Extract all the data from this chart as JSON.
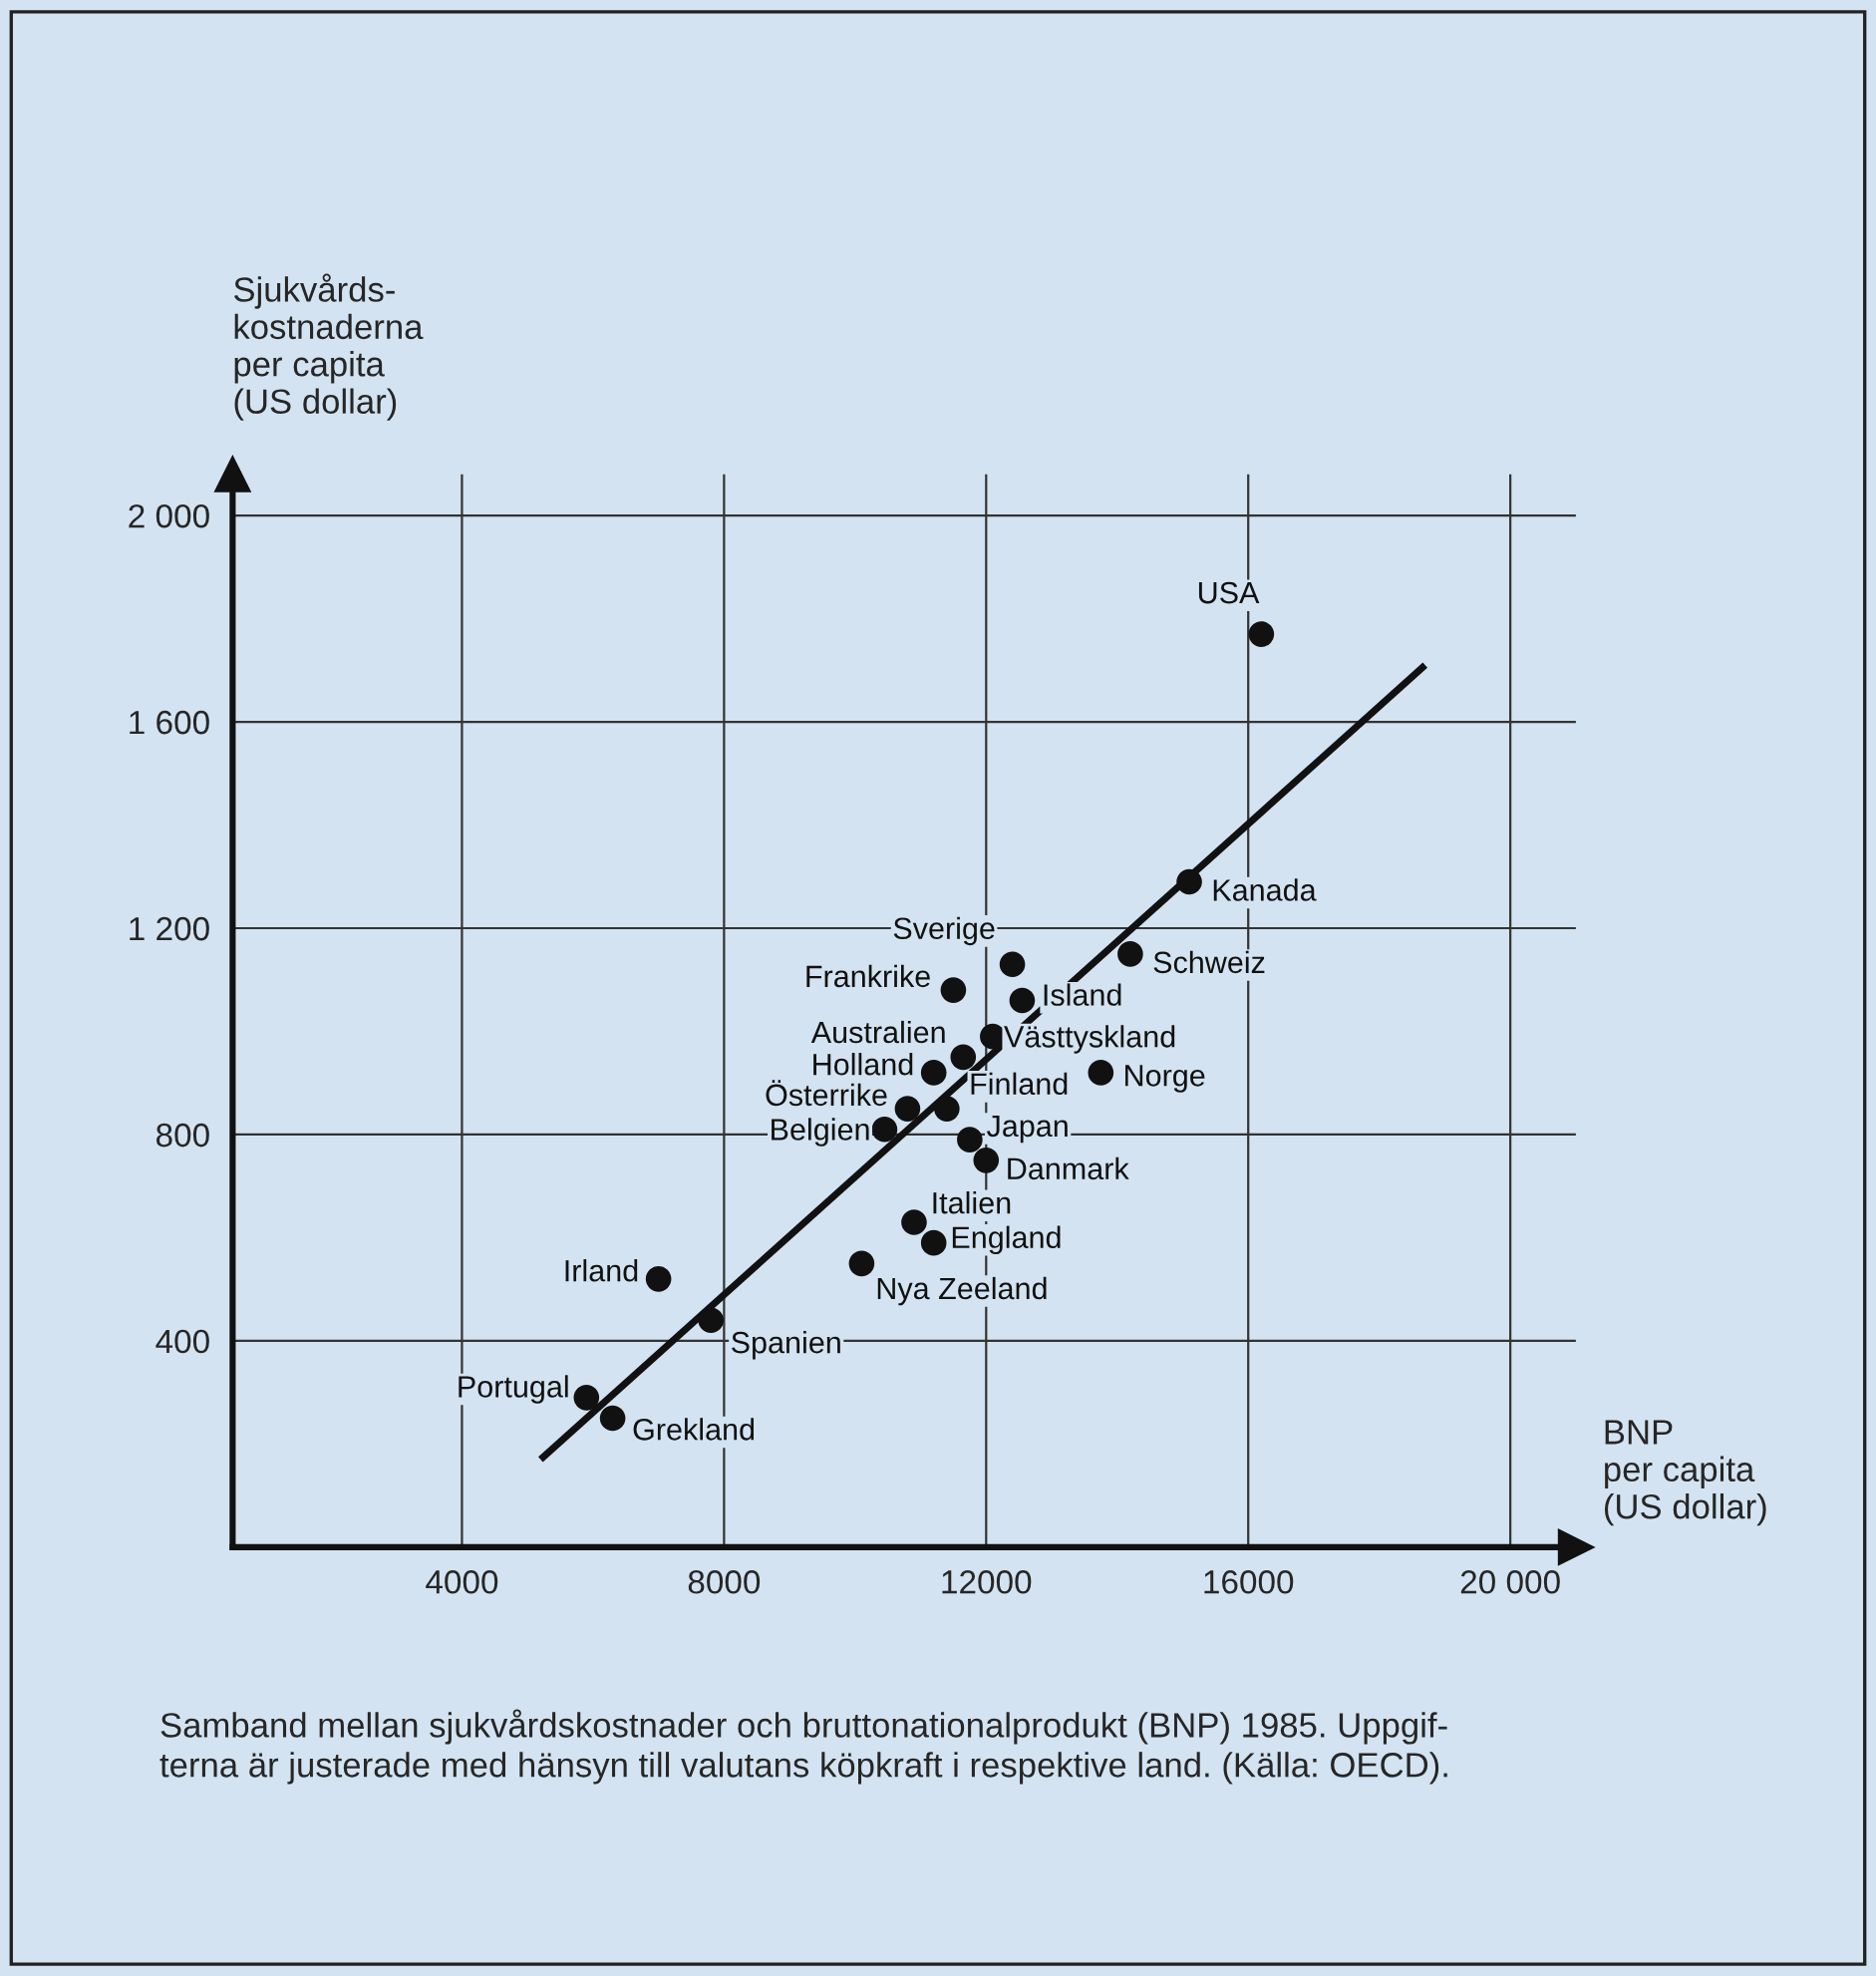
{
  "chart_data": {
    "type": "scatter",
    "xlabel": "BNP\nper capita\n(US dollar)",
    "ylabel": "Sjukvårds-\nkostnaderna\nper capita\n(US dollar)",
    "annotations": [
      "Samband mellan sjukvårdskostnader och bruttonationalprodukt (BNP) 1985. Uppgif-\nterna är justerade med hänsyn till valutans köpkraft i respektive land. (Källa: OECD)."
    ],
    "xlim": [
      500,
      21000
    ],
    "ylim": [
      0,
      2080
    ],
    "xticks": [
      4000,
      8000,
      12000,
      16000,
      {
        "value": 20000,
        "label": "20 000"
      }
    ],
    "yticks": [
      {
        "value": 400,
        "label": "400"
      },
      {
        "value": 800,
        "label": "800"
      },
      {
        "value": 1200,
        "label": "1 200"
      },
      {
        "value": 1600,
        "label": "1 600"
      },
      {
        "value": 2000,
        "label": "2 000"
      }
    ],
    "grid": true,
    "marker": "circle",
    "series": [
      {
        "color": "#111111",
        "x": [
          16200,
          15100,
          14200,
          12400,
          11500,
          12550,
          12100,
          11650,
          11200,
          13750,
          10800,
          11400,
          10450,
          11750,
          12000,
          10900,
          11200,
          10100,
          7000,
          7800,
          5900,
          6300
        ],
        "values": [
          1770,
          1290,
          1150,
          1130,
          1080,
          1060,
          990,
          950,
          920,
          920,
          850,
          850,
          810,
          790,
          750,
          630,
          590,
          550,
          520,
          440,
          290,
          250
        ],
        "value_labels": [
          "USA",
          "Kanada",
          "Schweiz",
          "Sverige",
          "Frankrike",
          "Island",
          "Västtyskland",
          "Australien",
          "Holland",
          "Norge",
          "Österrike",
          "Finland",
          "Belgien",
          "Japan",
          "Danmark",
          "Italien",
          "England",
          "Nya Zeeland",
          "Irland",
          "Spanien",
          "Portugal",
          "Grekland"
        ]
      },
      {
        "type": "line",
        "color": "#111111",
        "line_style": "solid",
        "marker": "none",
        "x": [
          5200,
          18700
        ],
        "values": [
          170,
          1710
        ]
      }
    ]
  }
}
